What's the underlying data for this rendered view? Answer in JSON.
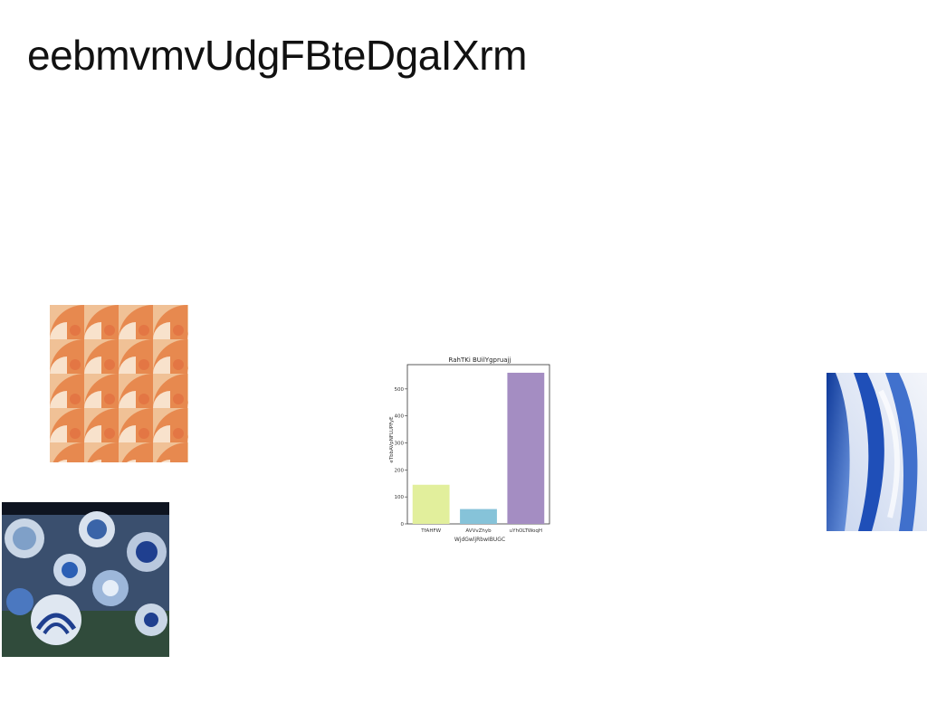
{
  "page": {
    "title": "eebmvmvUdgFBteDgaIXrm"
  },
  "images": {
    "pattern": {
      "icon": "geometric-pattern-image",
      "colors": [
        "#e26a3c",
        "#f0b888",
        "#f6dcc0",
        "#f9e9d6"
      ]
    },
    "tableware": {
      "icon": "blue-tableware-image",
      "colors": [
        "#1f3f8f",
        "#8fb0d8",
        "#2e5a30",
        "#dfe7f1"
      ]
    },
    "waves": {
      "icon": "blue-waves-image",
      "colors": [
        "#1f4fb8",
        "#7da3e6",
        "#eef2fa"
      ]
    }
  },
  "chart_data": {
    "type": "bar",
    "title": "RahTKi BUilYgpruajj",
    "xlabel": "WjdGwljRbwIBUGC",
    "ylabel": "eTbbAVpNFLUPFyE",
    "categories": [
      "TfAHFW",
      "AVVvZhyb",
      "uYhOLTWoqH"
    ],
    "values": [
      145,
      55,
      560
    ],
    "colors": [
      "#e2ef9c",
      "#86c3d9",
      "#a48dc2"
    ],
    "yticks": [
      0,
      100,
      200,
      300,
      400,
      500
    ],
    "ylim": [
      0,
      590
    ],
    "grid": false
  }
}
